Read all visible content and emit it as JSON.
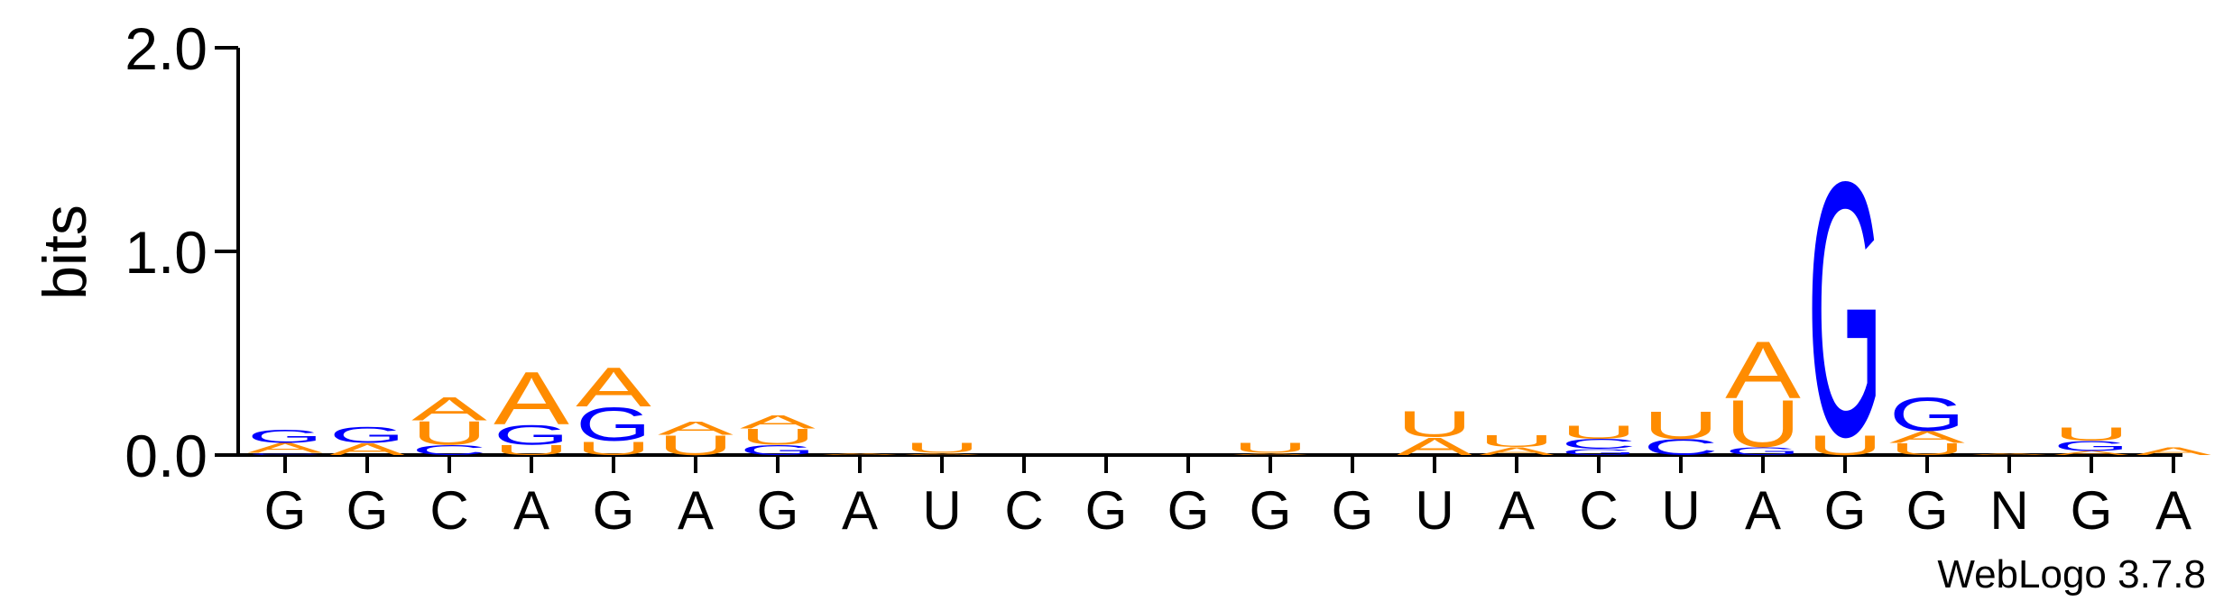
{
  "chart_data": {
    "type": "logo",
    "y_label": "bits",
    "footer": "WebLogo 3.7.8",
    "ylim": [
      0,
      2
    ],
    "yticks": [
      {
        "value": 0,
        "label": "0.0"
      },
      {
        "value": 1,
        "label": "1.0"
      },
      {
        "value": 2,
        "label": "2.0"
      }
    ],
    "categories": [
      "G",
      "G",
      "C",
      "A",
      "G",
      "A",
      "G",
      "A",
      "U",
      "C",
      "G",
      "G",
      "G",
      "G",
      "U",
      "A",
      "C",
      "U",
      "A",
      "G",
      "G",
      "N",
      "G",
      "A"
    ],
    "colors": {
      "A": "#ff8c00",
      "U": "#ff8c00",
      "G": "#0000ff",
      "C": "#0000ff"
    },
    "stacks": [
      [
        {
          "letter": "C",
          "value": 0.01
        },
        {
          "letter": "A",
          "value": 0.05
        },
        {
          "letter": "G",
          "value": 0.07
        }
      ],
      [
        {
          "letter": "A",
          "value": 0.06
        },
        {
          "letter": "G",
          "value": 0.08
        }
      ],
      [
        {
          "letter": "C",
          "value": 0.05
        },
        {
          "letter": "U",
          "value": 0.12
        },
        {
          "letter": "A",
          "value": 0.12
        }
      ],
      [
        {
          "letter": "U",
          "value": 0.05
        },
        {
          "letter": "G",
          "value": 0.1
        },
        {
          "letter": "A",
          "value": 0.27
        }
      ],
      [
        {
          "letter": "U",
          "value": 0.07
        },
        {
          "letter": "G",
          "value": 0.17
        },
        {
          "letter": "A",
          "value": 0.2
        }
      ],
      [
        {
          "letter": "U",
          "value": 0.1
        },
        {
          "letter": "A",
          "value": 0.07
        }
      ],
      [
        {
          "letter": "G",
          "value": 0.05
        },
        {
          "letter": "U",
          "value": 0.08
        },
        {
          "letter": "A",
          "value": 0.07
        }
      ],
      [
        {
          "letter": "A",
          "value": 0.01
        }
      ],
      [
        {
          "letter": "A",
          "value": 0.01
        },
        {
          "letter": "U",
          "value": 0.05
        }
      ],
      [],
      [],
      [],
      [
        {
          "letter": "A",
          "value": 0.01
        },
        {
          "letter": "U",
          "value": 0.05
        }
      ],
      [],
      [
        {
          "letter": "A",
          "value": 0.09
        },
        {
          "letter": "U",
          "value": 0.13
        }
      ],
      [
        {
          "letter": "A",
          "value": 0.04
        },
        {
          "letter": "U",
          "value": 0.06
        }
      ],
      [
        {
          "letter": "G",
          "value": 0.03
        },
        {
          "letter": "C",
          "value": 0.05
        },
        {
          "letter": "U",
          "value": 0.07
        }
      ],
      [
        {
          "letter": "C",
          "value": 0.08
        },
        {
          "letter": "U",
          "value": 0.14
        }
      ],
      [
        {
          "letter": "G",
          "value": 0.04
        },
        {
          "letter": "U",
          "value": 0.24
        },
        {
          "letter": "A",
          "value": 0.29
        }
      ],
      [
        {
          "letter": "U",
          "value": 0.1
        },
        {
          "letter": "G",
          "value": 1.3
        }
      ],
      [
        {
          "letter": "U",
          "value": 0.06
        },
        {
          "letter": "A",
          "value": 0.06
        },
        {
          "letter": "G",
          "value": 0.17
        }
      ],
      [
        {
          "letter": "A",
          "value": 0.01
        }
      ],
      [
        {
          "letter": "A",
          "value": 0.02
        },
        {
          "letter": "G",
          "value": 0.05
        },
        {
          "letter": "U",
          "value": 0.07
        }
      ],
      [
        {
          "letter": "A",
          "value": 0.04
        }
      ]
    ]
  }
}
